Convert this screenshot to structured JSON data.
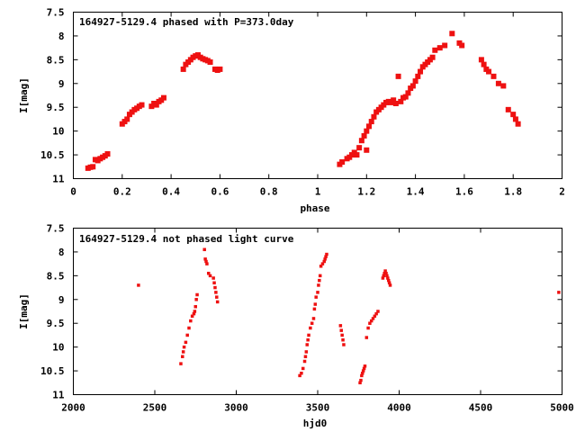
{
  "chart_data": [
    {
      "type": "scatter",
      "title": "164927-5129.4 phased with P=373.0day",
      "xlabel": "phase",
      "ylabel": "I[mag]",
      "xlim": [
        0,
        2
      ],
      "ylim": [
        7.5,
        11
      ],
      "y_inverted": true,
      "xticks": [
        "0",
        "0.2",
        "0.4",
        "0.6",
        "0.8",
        "1",
        "1.2",
        "1.4",
        "1.6",
        "1.8",
        "2"
      ],
      "yticks": [
        "7.5",
        "8",
        "8.5",
        "9",
        "9.5",
        "10",
        "10.5",
        "11"
      ],
      "grid": false,
      "marker_color": "#ee1111",
      "series": [
        {
          "x": [
            0.06,
            0.07,
            0.08,
            0.09,
            0.1,
            0.11,
            0.12,
            0.13,
            0.14,
            0.2,
            0.21,
            0.22,
            0.23,
            0.24,
            0.25,
            0.26,
            0.27,
            0.28,
            0.32,
            0.33,
            0.34,
            0.35,
            0.36,
            0.37,
            0.45,
            0.46,
            0.47,
            0.48,
            0.49,
            0.5,
            0.51,
            0.52,
            0.53,
            0.54,
            0.55,
            0.56,
            0.58,
            0.59,
            0.6,
            1.09,
            1.1,
            1.12,
            1.13,
            1.14,
            1.15,
            1.16,
            1.17,
            1.18,
            1.19,
            1.2,
            1.2,
            1.21,
            1.22,
            1.23,
            1.24,
            1.25,
            1.26,
            1.27,
            1.28,
            1.29,
            1.3,
            1.31,
            1.32,
            1.33,
            1.34,
            1.35,
            1.36,
            1.37,
            1.38,
            1.39,
            1.4,
            1.41,
            1.42,
            1.43,
            1.44,
            1.45,
            1.46,
            1.47,
            1.48,
            1.5,
            1.52,
            1.55,
            1.58,
            1.59,
            1.67,
            1.68,
            1.69,
            1.7,
            1.72,
            1.74,
            1.76,
            1.78,
            1.8,
            1.81,
            1.82
          ],
          "y": [
            10.78,
            10.76,
            10.75,
            10.6,
            10.62,
            10.58,
            10.55,
            10.52,
            10.48,
            9.85,
            9.8,
            9.75,
            9.65,
            9.6,
            9.55,
            9.52,
            9.48,
            9.45,
            9.48,
            9.42,
            9.45,
            9.38,
            9.35,
            9.3,
            8.7,
            8.6,
            8.55,
            8.5,
            8.45,
            8.42,
            8.4,
            8.45,
            8.48,
            8.5,
            8.52,
            8.55,
            8.7,
            8.72,
            8.7,
            10.7,
            10.65,
            10.58,
            10.55,
            10.5,
            10.45,
            10.5,
            10.35,
            10.2,
            10.1,
            10.0,
            10.4,
            9.9,
            9.8,
            9.7,
            9.6,
            9.55,
            9.5,
            9.45,
            9.4,
            9.38,
            9.4,
            9.35,
            9.42,
            8.85,
            9.38,
            9.3,
            9.28,
            9.2,
            9.1,
            9.05,
            8.95,
            8.85,
            8.75,
            8.65,
            8.6,
            8.55,
            8.5,
            8.45,
            8.3,
            8.25,
            8.2,
            7.95,
            8.15,
            8.2,
            8.5,
            8.6,
            8.7,
            8.75,
            8.85,
            9.0,
            9.05,
            9.55,
            9.65,
            9.75,
            9.85
          ]
        }
      ]
    },
    {
      "type": "scatter",
      "title": "164927-5129.4 not phased light curve",
      "xlabel": "hjd0",
      "ylabel": "I[mag]",
      "xlim": [
        2000,
        5000
      ],
      "ylim": [
        7.5,
        11
      ],
      "y_inverted": true,
      "xticks": [
        "2000",
        "2500",
        "3000",
        "3500",
        "4000",
        "4500",
        "5000"
      ],
      "yticks": [
        "7.5",
        "8",
        "8.5",
        "9",
        "9.5",
        "10",
        "10.5",
        "11"
      ],
      "grid": false,
      "marker_color": "#ee1111",
      "series": [
        {
          "x": [
            2400,
            2660,
            2670,
            2675,
            2680,
            2690,
            2700,
            2710,
            2720,
            2730,
            2740,
            2745,
            2750,
            2755,
            2760,
            2805,
            2810,
            2815,
            2820,
            2830,
            2840,
            2860,
            2865,
            2870,
            2875,
            2880,
            2885,
            3390,
            3400,
            3410,
            3420,
            3425,
            3430,
            3435,
            3440,
            3445,
            3455,
            3465,
            3475,
            3480,
            3485,
            3490,
            3500,
            3505,
            3510,
            3515,
            3520,
            3530,
            3540,
            3545,
            3550,
            3555,
            3640,
            3645,
            3650,
            3655,
            3660,
            3760,
            3765,
            3770,
            3775,
            3780,
            3785,
            3790,
            3800,
            3810,
            3820,
            3830,
            3840,
            3850,
            3860,
            3870,
            3900,
            3905,
            3910,
            3915,
            3920,
            3925,
            3930,
            3935,
            3940,
            3945,
            4980
          ],
          "y": [
            8.7,
            10.35,
            10.2,
            10.1,
            10.0,
            9.9,
            9.75,
            9.6,
            9.45,
            9.35,
            9.3,
            9.25,
            9.15,
            9.0,
            8.9,
            7.95,
            8.15,
            8.2,
            8.25,
            8.45,
            8.5,
            8.55,
            8.65,
            8.75,
            8.85,
            8.95,
            9.05,
            10.6,
            10.55,
            10.45,
            10.3,
            10.2,
            10.1,
            9.95,
            9.85,
            9.75,
            9.6,
            9.5,
            9.4,
            9.2,
            9.1,
            8.95,
            8.85,
            8.7,
            8.6,
            8.5,
            8.3,
            8.25,
            8.2,
            8.15,
            8.1,
            8.05,
            9.55,
            9.65,
            9.75,
            9.85,
            9.95,
            10.75,
            10.7,
            10.6,
            10.55,
            10.5,
            10.45,
            10.4,
            9.8,
            9.6,
            9.5,
            9.45,
            9.4,
            9.35,
            9.3,
            9.25,
            8.55,
            8.5,
            8.45,
            8.4,
            8.45,
            8.5,
            8.55,
            8.6,
            8.65,
            8.7,
            8.85
          ]
        }
      ]
    }
  ]
}
